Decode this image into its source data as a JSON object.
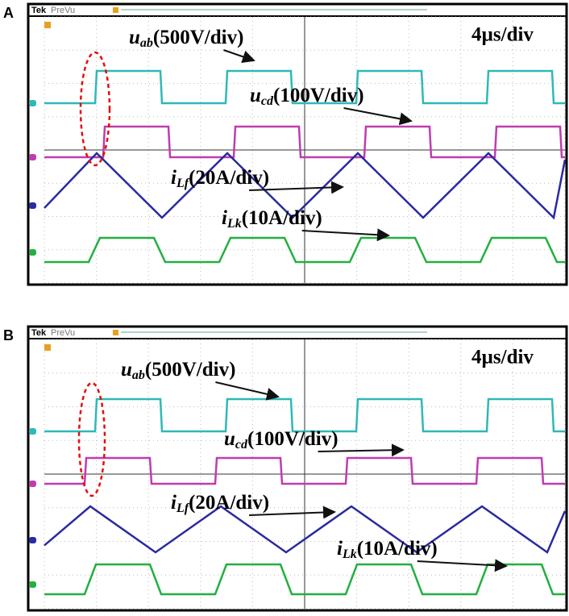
{
  "panels": [
    {
      "label": "A",
      "brand": "Tek",
      "mode": "PreVu",
      "timebase": "4µs/div",
      "traces": [
        {
          "symbol": "u",
          "sub": "ab",
          "scale": "(500V/div)"
        },
        {
          "symbol": "u",
          "sub": "cd",
          "scale": "(100V/div)"
        },
        {
          "symbol": "i",
          "sub": "Lf",
          "scale": "(20A/div)"
        },
        {
          "symbol": "i",
          "sub": "Lk",
          "scale": "(10A/div)"
        }
      ]
    },
    {
      "label": "B",
      "brand": "Tek",
      "mode": "PreVu",
      "timebase": "4µs/div",
      "traces": [
        {
          "symbol": "u",
          "sub": "ab",
          "scale": "(500V/div)"
        },
        {
          "symbol": "u",
          "sub": "cd",
          "scale": "(100V/div)"
        },
        {
          "symbol": "i",
          "sub": "Lf",
          "scale": "(20A/div)"
        },
        {
          "symbol": "i",
          "sub": "Lk",
          "scale": "(10A/div)"
        }
      ]
    }
  ]
}
